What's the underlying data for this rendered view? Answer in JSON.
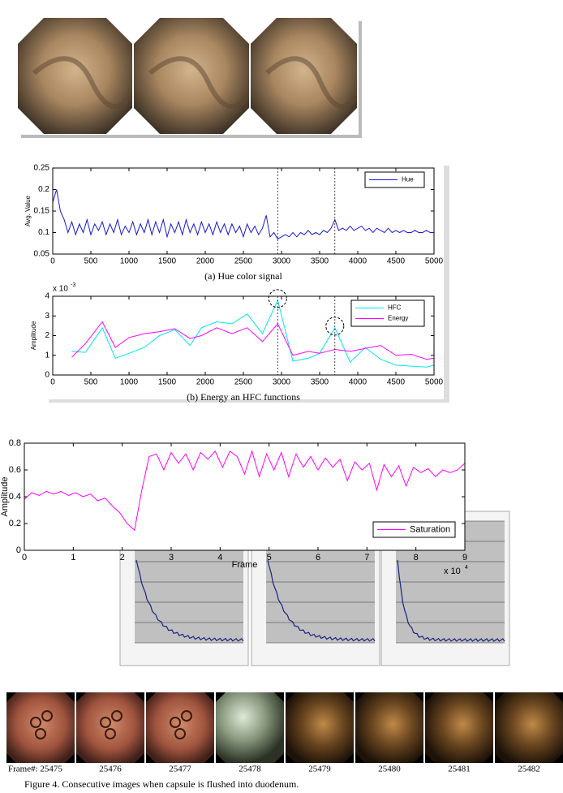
{
  "chart_data": [
    {
      "type": "line",
      "caption": "(a) Hue color signal",
      "ylabel": "Avg. Value",
      "x": [
        0,
        50,
        100,
        150,
        200,
        250,
        300,
        350,
        400,
        450,
        500,
        550,
        600,
        650,
        700,
        750,
        800,
        850,
        900,
        950,
        1000,
        1050,
        1100,
        1150,
        1200,
        1250,
        1300,
        1350,
        1400,
        1450,
        1500,
        1550,
        1600,
        1650,
        1700,
        1750,
        1800,
        1850,
        1900,
        1950,
        2000,
        2050,
        2100,
        2150,
        2200,
        2250,
        2300,
        2350,
        2400,
        2450,
        2500,
        2550,
        2600,
        2650,
        2700,
        2750,
        2800,
        2850,
        2900,
        2950,
        3000,
        3050,
        3100,
        3150,
        3200,
        3250,
        3300,
        3350,
        3400,
        3450,
        3500,
        3550,
        3600,
        3650,
        3700,
        3750,
        3800,
        3850,
        3900,
        3950,
        4000,
        4050,
        4100,
        4150,
        4200,
        4250,
        4300,
        4350,
        4400,
        4450,
        4500,
        4550,
        4600,
        4650,
        4700,
        4750,
        4800,
        4850,
        4900,
        4950,
        5000
      ],
      "series": [
        {
          "name": "Hue",
          "color": "#1a1ad6",
          "values": [
            0.17,
            0.2,
            0.15,
            0.13,
            0.1,
            0.125,
            0.095,
            0.12,
            0.1,
            0.13,
            0.095,
            0.12,
            0.105,
            0.125,
            0.095,
            0.12,
            0.1,
            0.13,
            0.095,
            0.115,
            0.1,
            0.125,
            0.095,
            0.12,
            0.1,
            0.13,
            0.095,
            0.125,
            0.1,
            0.13,
            0.09,
            0.12,
            0.1,
            0.125,
            0.095,
            0.13,
            0.1,
            0.12,
            0.095,
            0.125,
            0.1,
            0.12,
            0.095,
            0.125,
            0.1,
            0.12,
            0.095,
            0.12,
            0.1,
            0.115,
            0.09,
            0.12,
            0.1,
            0.115,
            0.095,
            0.11,
            0.14,
            0.09,
            0.1,
            0.085,
            0.09,
            0.095,
            0.09,
            0.1,
            0.09,
            0.1,
            0.095,
            0.105,
            0.095,
            0.1,
            0.095,
            0.105,
            0.1,
            0.11,
            0.13,
            0.105,
            0.11,
            0.105,
            0.115,
            0.105,
            0.11,
            0.115,
            0.105,
            0.11,
            0.1,
            0.11,
            0.105,
            0.1,
            0.11,
            0.1,
            0.105,
            0.1,
            0.105,
            0.1,
            0.1,
            0.105,
            0.1,
            0.1,
            0.105,
            0.1,
            0.1
          ]
        }
      ],
      "xlim": [
        0,
        5000
      ],
      "xticks": [
        0,
        500,
        1000,
        1500,
        2000,
        2500,
        3000,
        3500,
        4000,
        4500,
        5000
      ],
      "ylim": [
        0.05,
        0.25
      ],
      "yticks": [
        0.05,
        0.1,
        0.15,
        0.2,
        0.25
      ],
      "legend": "upper right",
      "highlight_x": [
        2950,
        3700
      ]
    },
    {
      "type": "line",
      "caption": "(b) Energy an HFC functions",
      "ylabel": "Amplitude",
      "scale_label": {
        "base": "x 10",
        "exponent": "-3"
      },
      "x": [
        250,
        430,
        650,
        820,
        1000,
        1200,
        1400,
        1600,
        1800,
        1950,
        2150,
        2350,
        2550,
        2750,
        2950,
        3150,
        3350,
        3500,
        3700,
        3900,
        4100,
        4300,
        4500,
        4700,
        4900,
        5000
      ],
      "series": [
        {
          "name": "HFC",
          "color": "#00e5ee",
          "values": [
            1.2,
            1.15,
            2.4,
            0.85,
            1.1,
            1.4,
            2.0,
            2.3,
            1.5,
            2.4,
            2.7,
            2.6,
            3.1,
            2.1,
            3.8,
            0.7,
            0.85,
            1.1,
            2.4,
            0.65,
            1.4,
            0.8,
            0.5,
            0.45,
            0.4,
            0.5
          ]
        },
        {
          "name": "Energy",
          "color": "#ff00ff",
          "values": [
            0.9,
            1.6,
            2.7,
            1.4,
            1.9,
            2.1,
            2.2,
            2.35,
            1.85,
            2.0,
            2.4,
            2.1,
            2.4,
            1.7,
            2.6,
            1.0,
            1.2,
            1.1,
            1.3,
            1.2,
            1.35,
            1.5,
            1.0,
            1.05,
            0.8,
            0.85
          ]
        }
      ],
      "xlim": [
        0,
        5000
      ],
      "xticks": [
        0,
        500,
        1000,
        1500,
        2000,
        2500,
        3000,
        3500,
        4000,
        4500,
        5000
      ],
      "ylim": [
        0,
        4
      ],
      "yticks": [
        0,
        1,
        2,
        3,
        4
      ],
      "legend": "upper right",
      "highlight_x": [
        2950,
        3700
      ]
    },
    {
      "type": "line",
      "xlabel": "Frame",
      "ylabel": "Amplitude",
      "scale_label": {
        "base": "x 10",
        "exponent": "4"
      },
      "x": [
        0,
        0.15,
        0.3,
        0.45,
        0.6,
        0.75,
        0.9,
        1.05,
        1.2,
        1.35,
        1.5,
        1.65,
        1.8,
        1.95,
        2.1,
        2.25,
        2.4,
        2.55,
        2.7,
        2.85,
        3,
        3.15,
        3.3,
        3.45,
        3.6,
        3.75,
        3.9,
        4.05,
        4.2,
        4.35,
        4.5,
        4.65,
        4.8,
        4.95,
        5.1,
        5.25,
        5.4,
        5.55,
        5.7,
        5.85,
        6,
        6.15,
        6.3,
        6.45,
        6.6,
        6.75,
        6.9,
        7.05,
        7.2,
        7.35,
        7.5,
        7.65,
        7.8,
        7.95,
        8.1,
        8.25,
        8.4,
        8.55,
        8.7,
        8.85,
        9
      ],
      "series": [
        {
          "name": "Saturation",
          "color": "#ff00ff",
          "values": [
            0.38,
            0.43,
            0.41,
            0.44,
            0.42,
            0.44,
            0.41,
            0.43,
            0.4,
            0.42,
            0.37,
            0.39,
            0.33,
            0.28,
            0.2,
            0.15,
            0.45,
            0.7,
            0.72,
            0.6,
            0.73,
            0.65,
            0.72,
            0.6,
            0.73,
            0.68,
            0.74,
            0.62,
            0.74,
            0.7,
            0.57,
            0.74,
            0.55,
            0.72,
            0.6,
            0.73,
            0.55,
            0.72,
            0.62,
            0.7,
            0.6,
            0.69,
            0.62,
            0.68,
            0.52,
            0.66,
            0.6,
            0.65,
            0.45,
            0.64,
            0.55,
            0.63,
            0.48,
            0.62,
            0.58,
            0.61,
            0.55,
            0.6,
            0.58,
            0.6,
            0.65
          ]
        }
      ],
      "xlim": [
        0,
        9
      ],
      "xticks": [
        0,
        1,
        2,
        3,
        4,
        5,
        6,
        7,
        8,
        9
      ],
      "ylim": [
        0,
        0.8
      ],
      "yticks": [
        0,
        0.2,
        0.4,
        0.6,
        0.8
      ],
      "legend": "lower right"
    }
  ],
  "frame_strip": {
    "labels": [
      "Frame#: 25475",
      "25476",
      "25477",
      "25478",
      "25479",
      "25480",
      "25481",
      "25482"
    ],
    "caption": "Figure 4. Consecutive images when capsule is flushed into duodenum."
  }
}
